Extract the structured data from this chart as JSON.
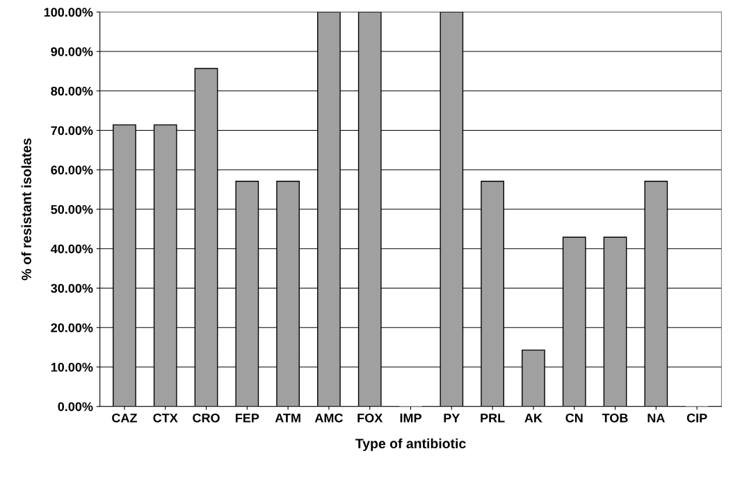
{
  "chart_data": {
    "type": "bar",
    "xlabel": "Type of antibiotic",
    "ylabel": "% of resistant isolates",
    "categories": [
      "CAZ",
      "CTX",
      "CRO",
      "FEP",
      "ATM",
      "AMC",
      "FOX",
      "IMP",
      "PY",
      "PRL",
      "AK",
      "CN",
      "TOB",
      "NA",
      "CIP"
    ],
    "values": [
      71.4,
      71.4,
      85.7,
      57.1,
      57.1,
      100,
      100,
      0,
      100,
      57.1,
      14.3,
      42.9,
      42.9,
      57.1,
      0
    ],
    "color": "#a0a0a0",
    "ylim": [
      0,
      100
    ],
    "yticks": [
      {
        "value": 0,
        "label": "0.00%"
      },
      {
        "value": 10,
        "label": "10.00%"
      },
      {
        "value": 20,
        "label": "20.00%"
      },
      {
        "value": 30,
        "label": "30.00%"
      },
      {
        "value": 40,
        "label": "40.00%"
      },
      {
        "value": 50,
        "label": "50.00%"
      },
      {
        "value": 60,
        "label": "60.00%"
      },
      {
        "value": 70,
        "label": "70.00%"
      },
      {
        "value": 80,
        "label": "80.00%"
      },
      {
        "value": 90,
        "label": "90.00%"
      },
      {
        "value": 100,
        "label": "100.00%"
      }
    ],
    "grid": "y"
  }
}
